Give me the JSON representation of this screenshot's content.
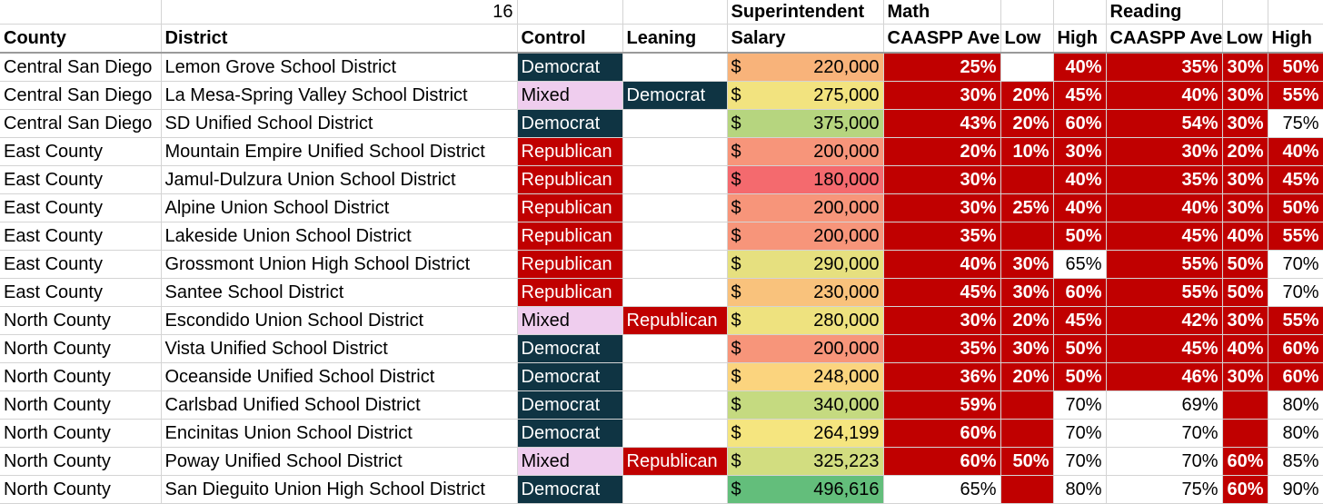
{
  "header_row1": {
    "count": "16",
    "superintendent": "Superintendent",
    "math": "Math",
    "reading": "Reading"
  },
  "header_row2": {
    "county": "County",
    "district": "District",
    "control": "Control",
    "leaning": "Leaning",
    "salary": "Salary",
    "math_ave": "CAASPP Ave",
    "math_low": "Low",
    "math_high": "High",
    "read_ave": "CAASPP Ave",
    "read_low": "Low",
    "read_high": "High"
  },
  "colors": {
    "democrat": "#0f3443",
    "republican": "#c00000",
    "mixed": "#efcdee",
    "score_red": "#c00000"
  },
  "rows": [
    {
      "county": "Central San Diego",
      "district": "Lemon Grove School District",
      "control": "Democrat",
      "leaning": "",
      "currency": "$",
      "salary": "220,000",
      "salary_color": "#f8b37a",
      "math_ave": "25%",
      "math_low": "",
      "math_high": "40%",
      "read_ave": "35%",
      "read_low": "30%",
      "read_high": "50%",
      "hl": [
        1,
        0,
        1,
        1,
        1,
        1
      ]
    },
    {
      "county": "Central San Diego",
      "district": "La Mesa-Spring Valley School District",
      "control": "Mixed",
      "leaning": "Democrat",
      "currency": "$",
      "salary": "275,000",
      "salary_color": "#f2e37f",
      "math_ave": "30%",
      "math_low": "20%",
      "math_high": "45%",
      "read_ave": "40%",
      "read_low": "30%",
      "read_high": "55%",
      "hl": [
        1,
        1,
        1,
        1,
        1,
        1
      ]
    },
    {
      "county": "Central San Diego",
      "district": "SD Unified School District",
      "control": "Democrat",
      "leaning": "",
      "currency": "$",
      "salary": "375,000",
      "salary_color": "#b6d57f",
      "math_ave": "43%",
      "math_low": "20%",
      "math_high": "60%",
      "read_ave": "54%",
      "read_low": "30%",
      "read_high": "75%",
      "hl": [
        1,
        1,
        1,
        1,
        1,
        0
      ]
    },
    {
      "county": "East County",
      "district": "Mountain Empire Unified School District",
      "control": "Republican",
      "leaning": "",
      "currency": "$",
      "salary": "200,000",
      "salary_color": "#f7957a",
      "math_ave": "20%",
      "math_low": "10%",
      "math_high": "30%",
      "read_ave": "30%",
      "read_low": "20%",
      "read_high": "40%",
      "hl": [
        1,
        1,
        1,
        1,
        1,
        1
      ]
    },
    {
      "county": "East County",
      "district": "Jamul-Dulzura Union School District",
      "control": "Republican",
      "leaning": "",
      "currency": "$",
      "salary": "180,000",
      "salary_color": "#f46a6e",
      "math_ave": "30%",
      "math_low": "",
      "math_high": "40%",
      "read_ave": "35%",
      "read_low": "30%",
      "read_high": "45%",
      "hl": [
        1,
        1,
        1,
        1,
        1,
        1
      ]
    },
    {
      "county": "East County",
      "district": "Alpine Union School District",
      "control": "Republican",
      "leaning": "",
      "currency": "$",
      "salary": "200,000",
      "salary_color": "#f7957a",
      "math_ave": "30%",
      "math_low": "25%",
      "math_high": "40%",
      "read_ave": "40%",
      "read_low": "30%",
      "read_high": "50%",
      "hl": [
        1,
        1,
        1,
        1,
        1,
        1
      ]
    },
    {
      "county": "East County",
      "district": "Lakeside Union School District",
      "control": "Republican",
      "leaning": "",
      "currency": "$",
      "salary": "200,000",
      "salary_color": "#f7957a",
      "math_ave": "35%",
      "math_low": "",
      "math_high": "50%",
      "read_ave": "45%",
      "read_low": "40%",
      "read_high": "55%",
      "hl": [
        1,
        1,
        1,
        1,
        1,
        1
      ]
    },
    {
      "county": "East County",
      "district": "Grossmont Union High School District",
      "control": "Republican",
      "leaning": "",
      "currency": "$",
      "salary": "290,000",
      "salary_color": "#e6e07f",
      "math_ave": "40%",
      "math_low": "30%",
      "math_high": "65%",
      "read_ave": "55%",
      "read_low": "50%",
      "read_high": "70%",
      "hl": [
        1,
        1,
        0,
        1,
        1,
        0
      ]
    },
    {
      "county": "East County",
      "district": "Santee School District",
      "control": "Republican",
      "leaning": "",
      "currency": "$",
      "salary": "230,000",
      "salary_color": "#f9c27c",
      "math_ave": "45%",
      "math_low": "30%",
      "math_high": "60%",
      "read_ave": "55%",
      "read_low": "50%",
      "read_high": "70%",
      "hl": [
        1,
        1,
        1,
        1,
        1,
        0
      ]
    },
    {
      "county": "North County",
      "district": "Escondido Union School District",
      "control": "Mixed",
      "leaning": "Republican",
      "currency": "$",
      "salary": "280,000",
      "salary_color": "#eee27f",
      "math_ave": "30%",
      "math_low": "20%",
      "math_high": "45%",
      "read_ave": "42%",
      "read_low": "30%",
      "read_high": "55%",
      "hl": [
        1,
        1,
        1,
        1,
        1,
        1
      ]
    },
    {
      "county": "North County",
      "district": "Vista Unified School District",
      "control": "Democrat",
      "leaning": "",
      "currency": "$",
      "salary": "200,000",
      "salary_color": "#f7957a",
      "math_ave": "35%",
      "math_low": "30%",
      "math_high": "50%",
      "read_ave": "45%",
      "read_low": "40%",
      "read_high": "60%",
      "hl": [
        1,
        1,
        1,
        1,
        1,
        1
      ]
    },
    {
      "county": "North County",
      "district": "Oceanside Unified School District",
      "control": "Democrat",
      "leaning": "",
      "currency": "$",
      "salary": "248,000",
      "salary_color": "#fbd47e",
      "math_ave": "36%",
      "math_low": "20%",
      "math_high": "50%",
      "read_ave": "46%",
      "read_low": "30%",
      "read_high": "60%",
      "hl": [
        1,
        1,
        1,
        1,
        1,
        1
      ]
    },
    {
      "county": "North County",
      "district": "Carlsbad Unified School District",
      "control": "Democrat",
      "leaning": "",
      "currency": "$",
      "salary": "340,000",
      "salary_color": "#c5da80",
      "math_ave": "59%",
      "math_low": "",
      "math_high": "70%",
      "read_ave": "69%",
      "read_low": "",
      "read_high": "80%",
      "hl": [
        1,
        1,
        0,
        0,
        1,
        0
      ]
    },
    {
      "county": "North County",
      "district": "Encinitas Union School District",
      "control": "Democrat",
      "leaning": "",
      "currency": "$",
      "salary": "264,199",
      "salary_color": "#f5e57f",
      "math_ave": "60%",
      "math_low": "",
      "math_high": "70%",
      "read_ave": "70%",
      "read_low": "",
      "read_high": "80%",
      "hl": [
        1,
        1,
        0,
        0,
        1,
        0
      ]
    },
    {
      "county": "North County",
      "district": "Poway Unified School District",
      "control": "Mixed",
      "leaning": "Republican",
      "currency": "$",
      "salary": "325,223",
      "salary_color": "#d2dd80",
      "math_ave": "60%",
      "math_low": "50%",
      "math_high": "70%",
      "read_ave": "70%",
      "read_low": "60%",
      "read_high": "85%",
      "hl": [
        1,
        1,
        0,
        0,
        1,
        0
      ]
    },
    {
      "county": "North County",
      "district": "San Dieguito Union High School District",
      "control": "Democrat",
      "leaning": "",
      "currency": "$",
      "salary": "496,616",
      "salary_color": "#63be7b",
      "math_ave": "65%",
      "math_low": "",
      "math_high": "80%",
      "read_ave": "75%",
      "read_low": "60%",
      "read_high": "90%",
      "hl": [
        0,
        1,
        0,
        0,
        1,
        0
      ]
    }
  ]
}
